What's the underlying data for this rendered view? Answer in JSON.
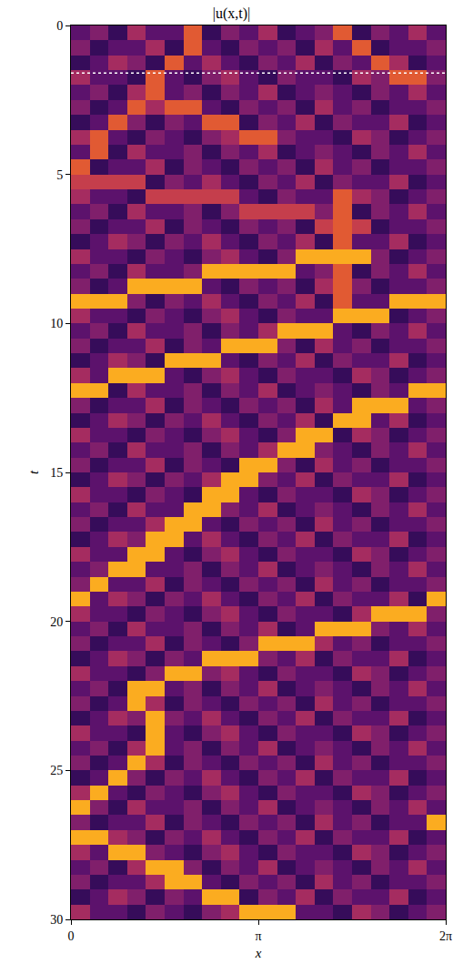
{
  "chart_data": {
    "type": "heatmap",
    "title": "|u(x,t)|",
    "x_label": "x",
    "y_label": "t",
    "xlim": [
      0,
      6.28318
    ],
    "ylim": [
      30,
      0
    ],
    "xticks": [
      0,
      {
        "value": 3.14159,
        "label": "π"
      },
      {
        "value": 6.28318,
        "label": "2π"
      }
    ],
    "yticks": [
      0,
      5,
      10,
      15,
      20,
      25,
      30
    ],
    "zlim": [
      0,
      10
    ],
    "hline": {
      "y": 1.6,
      "color": "#ffffff",
      "line_style": "dot"
    },
    "x": [
      0.157,
      0.471,
      0.785,
      1.1,
      1.414,
      1.728,
      2.042,
      2.356,
      2.67,
      2.985,
      3.299,
      3.613,
      3.927,
      4.241,
      4.555,
      4.869,
      5.184,
      5.498,
      5.812,
      6.126
    ],
    "y": [
      0.25,
      0.75,
      1.25,
      1.75,
      2.25,
      2.75,
      3.25,
      3.75,
      4.25,
      4.75,
      5.25,
      5.75,
      6.25,
      6.75,
      7.25,
      7.75,
      8.25,
      8.75,
      9.25,
      9.75,
      10.25,
      10.75,
      11.25,
      11.75,
      12.25,
      12.75,
      13.25,
      13.75,
      14.25,
      14.75,
      15.25,
      15.75,
      16.25,
      16.75,
      17.25,
      17.75,
      18.25,
      18.75,
      19.25,
      19.75,
      20.25,
      20.75,
      21.25,
      21.75,
      22.25,
      22.75,
      23.25,
      23.75,
      24.25,
      24.75,
      25.25,
      25.75,
      26.25,
      26.75,
      27.25,
      27.75,
      28.25,
      28.75,
      29.25,
      29.75
    ],
    "z": [
      [
        3,
        4,
        2,
        5,
        3,
        3,
        7,
        2,
        4,
        3,
        5,
        2,
        3,
        4,
        7,
        2,
        4,
        3,
        5,
        3
      ],
      [
        4,
        2,
        3,
        3,
        5,
        2,
        7,
        3,
        2,
        4,
        3,
        4,
        2,
        5,
        3,
        7,
        2,
        3,
        3,
        4
      ],
      [
        2,
        3,
        5,
        4,
        2,
        7,
        3,
        5,
        3,
        2,
        4,
        3,
        5,
        2,
        4,
        3,
        7,
        5,
        2,
        3
      ],
      [
        5,
        3,
        3,
        2,
        7,
        3,
        2,
        4,
        5,
        3,
        2,
        4,
        3,
        3,
        2,
        5,
        4,
        7,
        7,
        4
      ],
      [
        3,
        4,
        2,
        5,
        7,
        3,
        4,
        2,
        4,
        3,
        5,
        2,
        3,
        4,
        3,
        2,
        4,
        3,
        5,
        3
      ],
      [
        4,
        2,
        3,
        7,
        5,
        7,
        7,
        3,
        2,
        4,
        3,
        4,
        2,
        5,
        3,
        4,
        2,
        3,
        3,
        4
      ],
      [
        2,
        3,
        7,
        4,
        2,
        4,
        3,
        7,
        7,
        2,
        4,
        3,
        5,
        2,
        4,
        3,
        3,
        5,
        2,
        3
      ],
      [
        5,
        7,
        3,
        2,
        4,
        3,
        2,
        4,
        5,
        7,
        7,
        4,
        3,
        3,
        2,
        5,
        4,
        2,
        3,
        4
      ],
      [
        3,
        7,
        2,
        5,
        3,
        3,
        4,
        2,
        4,
        3,
        5,
        2,
        3,
        4,
        3,
        2,
        4,
        3,
        5,
        3
      ],
      [
        7,
        2,
        3,
        3,
        5,
        2,
        4,
        3,
        2,
        4,
        3,
        4,
        2,
        5,
        3,
        4,
        2,
        3,
        3,
        4
      ],
      [
        6,
        6,
        6,
        6,
        2,
        4,
        3,
        5,
        3,
        2,
        4,
        3,
        5,
        2,
        4,
        3,
        3,
        5,
        2,
        3
      ],
      [
        5,
        3,
        3,
        2,
        6,
        6,
        6,
        6,
        6,
        3,
        2,
        4,
        3,
        3,
        7,
        5,
        4,
        2,
        3,
        4
      ],
      [
        3,
        4,
        2,
        5,
        3,
        3,
        4,
        2,
        4,
        6,
        6,
        6,
        6,
        4,
        7,
        2,
        4,
        3,
        5,
        3
      ],
      [
        4,
        2,
        3,
        3,
        5,
        2,
        4,
        3,
        2,
        4,
        3,
        4,
        2,
        6,
        7,
        6,
        2,
        3,
        3,
        4
      ],
      [
        2,
        3,
        5,
        4,
        2,
        4,
        3,
        5,
        3,
        2,
        4,
        3,
        5,
        2,
        7,
        3,
        3,
        5,
        2,
        3
      ],
      [
        5,
        3,
        3,
        2,
        4,
        3,
        2,
        4,
        5,
        3,
        2,
        4,
        9,
        9,
        9,
        9,
        4,
        2,
        3,
        4
      ],
      [
        3,
        4,
        2,
        5,
        3,
        3,
        4,
        9,
        9,
        9,
        9,
        9,
        3,
        4,
        7,
        2,
        4,
        3,
        5,
        3
      ],
      [
        4,
        2,
        3,
        9,
        9,
        9,
        9,
        3,
        2,
        4,
        3,
        4,
        2,
        5,
        7,
        4,
        2,
        3,
        3,
        4
      ],
      [
        9,
        9,
        9,
        4,
        2,
        4,
        3,
        5,
        3,
        2,
        4,
        3,
        5,
        2,
        7,
        3,
        3,
        9,
        9,
        9
      ],
      [
        5,
        3,
        3,
        2,
        4,
        3,
        2,
        4,
        5,
        3,
        2,
        4,
        3,
        3,
        9,
        9,
        9,
        2,
        3,
        4
      ],
      [
        3,
        4,
        2,
        5,
        3,
        3,
        4,
        2,
        4,
        3,
        5,
        9,
        9,
        9,
        3,
        2,
        4,
        3,
        5,
        3
      ],
      [
        4,
        2,
        3,
        3,
        5,
        2,
        4,
        3,
        9,
        9,
        9,
        4,
        2,
        5,
        3,
        4,
        2,
        3,
        3,
        4
      ],
      [
        2,
        3,
        5,
        4,
        2,
        9,
        9,
        9,
        3,
        2,
        4,
        3,
        5,
        2,
        4,
        3,
        3,
        5,
        2,
        3
      ],
      [
        5,
        3,
        9,
        9,
        9,
        3,
        2,
        4,
        5,
        3,
        2,
        4,
        3,
        3,
        2,
        5,
        4,
        2,
        3,
        4
      ],
      [
        9,
        9,
        2,
        5,
        3,
        3,
        4,
        2,
        4,
        3,
        5,
        2,
        3,
        4,
        3,
        2,
        4,
        3,
        9,
        9
      ],
      [
        4,
        2,
        3,
        3,
        5,
        2,
        4,
        3,
        2,
        4,
        3,
        4,
        2,
        5,
        3,
        9,
        9,
        9,
        3,
        4
      ],
      [
        2,
        3,
        5,
        4,
        2,
        4,
        3,
        5,
        3,
        2,
        4,
        3,
        5,
        2,
        9,
        9,
        3,
        5,
        2,
        3
      ],
      [
        5,
        3,
        3,
        2,
        4,
        3,
        2,
        4,
        5,
        3,
        2,
        4,
        9,
        9,
        2,
        5,
        4,
        2,
        3,
        4
      ],
      [
        3,
        4,
        2,
        5,
        3,
        3,
        4,
        2,
        4,
        3,
        5,
        9,
        9,
        4,
        3,
        2,
        4,
        3,
        5,
        3
      ],
      [
        4,
        2,
        3,
        3,
        5,
        2,
        4,
        3,
        2,
        9,
        9,
        4,
        2,
        5,
        3,
        4,
        2,
        3,
        3,
        4
      ],
      [
        2,
        3,
        5,
        4,
        2,
        4,
        3,
        5,
        9,
        9,
        4,
        3,
        5,
        2,
        4,
        3,
        3,
        5,
        2,
        3
      ],
      [
        5,
        3,
        3,
        2,
        4,
        3,
        2,
        9,
        9,
        3,
        2,
        4,
        3,
        3,
        2,
        5,
        4,
        2,
        3,
        4
      ],
      [
        3,
        4,
        2,
        5,
        3,
        3,
        9,
        9,
        4,
        3,
        5,
        2,
        3,
        4,
        3,
        2,
        4,
        3,
        5,
        3
      ],
      [
        4,
        2,
        3,
        3,
        5,
        9,
        9,
        3,
        2,
        4,
        3,
        4,
        2,
        5,
        3,
        4,
        2,
        3,
        3,
        4
      ],
      [
        2,
        3,
        5,
        4,
        9,
        9,
        3,
        5,
        3,
        2,
        4,
        3,
        5,
        2,
        4,
        3,
        3,
        5,
        2,
        3
      ],
      [
        5,
        3,
        3,
        9,
        9,
        3,
        2,
        4,
        5,
        3,
        2,
        4,
        3,
        3,
        2,
        5,
        4,
        2,
        3,
        4
      ],
      [
        3,
        4,
        9,
        9,
        3,
        3,
        4,
        2,
        4,
        3,
        5,
        2,
        3,
        4,
        3,
        2,
        4,
        3,
        5,
        3
      ],
      [
        4,
        9,
        3,
        3,
        5,
        2,
        4,
        3,
        2,
        4,
        3,
        4,
        2,
        5,
        3,
        4,
        2,
        3,
        3,
        4
      ],
      [
        9,
        3,
        5,
        4,
        2,
        4,
        3,
        5,
        3,
        2,
        4,
        3,
        5,
        2,
        4,
        3,
        3,
        5,
        2,
        9
      ],
      [
        5,
        3,
        3,
        2,
        4,
        3,
        2,
        4,
        5,
        3,
        2,
        4,
        3,
        3,
        2,
        5,
        9,
        9,
        9,
        4
      ],
      [
        3,
        4,
        2,
        5,
        3,
        3,
        4,
        2,
        4,
        3,
        5,
        2,
        3,
        9,
        9,
        9,
        4,
        3,
        5,
        3
      ],
      [
        4,
        2,
        3,
        3,
        5,
        2,
        4,
        3,
        2,
        4,
        9,
        9,
        9,
        5,
        3,
        4,
        2,
        3,
        3,
        4
      ],
      [
        2,
        3,
        5,
        4,
        2,
        4,
        3,
        9,
        9,
        9,
        4,
        3,
        5,
        2,
        4,
        3,
        3,
        5,
        2,
        3
      ],
      [
        5,
        3,
        3,
        2,
        4,
        9,
        9,
        4,
        5,
        3,
        2,
        4,
        3,
        3,
        2,
        5,
        4,
        2,
        3,
        4
      ],
      [
        3,
        4,
        2,
        9,
        9,
        3,
        4,
        2,
        4,
        3,
        5,
        2,
        3,
        4,
        3,
        2,
        4,
        3,
        5,
        3
      ],
      [
        4,
        2,
        3,
        9,
        5,
        2,
        4,
        3,
        2,
        4,
        3,
        4,
        2,
        5,
        3,
        4,
        2,
        3,
        3,
        4
      ],
      [
        2,
        3,
        5,
        4,
        9,
        4,
        3,
        5,
        3,
        2,
        4,
        3,
        5,
        2,
        4,
        3,
        3,
        5,
        2,
        3
      ],
      [
        5,
        3,
        3,
        2,
        9,
        3,
        2,
        4,
        5,
        3,
        2,
        4,
        3,
        3,
        2,
        5,
        4,
        2,
        3,
        4
      ],
      [
        3,
        4,
        2,
        5,
        9,
        3,
        4,
        2,
        4,
        3,
        5,
        2,
        3,
        4,
        3,
        2,
        4,
        3,
        5,
        3
      ],
      [
        4,
        2,
        3,
        9,
        5,
        2,
        4,
        3,
        2,
        4,
        3,
        4,
        2,
        5,
        3,
        4,
        2,
        3,
        3,
        4
      ],
      [
        2,
        3,
        9,
        4,
        2,
        4,
        3,
        5,
        3,
        2,
        4,
        3,
        5,
        2,
        4,
        3,
        3,
        5,
        2,
        3
      ],
      [
        5,
        9,
        3,
        2,
        4,
        3,
        2,
        4,
        5,
        3,
        2,
        4,
        3,
        3,
        2,
        5,
        4,
        2,
        3,
        4
      ],
      [
        9,
        4,
        2,
        5,
        3,
        3,
        4,
        2,
        4,
        3,
        5,
        2,
        3,
        4,
        3,
        2,
        4,
        3,
        5,
        3
      ],
      [
        4,
        2,
        3,
        3,
        5,
        2,
        4,
        3,
        2,
        4,
        3,
        4,
        2,
        5,
        3,
        4,
        2,
        3,
        3,
        9
      ],
      [
        9,
        9,
        5,
        4,
        2,
        4,
        3,
        5,
        3,
        2,
        4,
        3,
        5,
        2,
        4,
        3,
        3,
        5,
        2,
        3
      ],
      [
        5,
        3,
        9,
        9,
        4,
        3,
        2,
        4,
        5,
        3,
        2,
        4,
        3,
        3,
        2,
        5,
        4,
        2,
        3,
        4
      ],
      [
        3,
        4,
        2,
        5,
        9,
        9,
        4,
        2,
        4,
        3,
        5,
        2,
        3,
        4,
        3,
        2,
        4,
        3,
        5,
        3
      ],
      [
        4,
        2,
        3,
        3,
        5,
        9,
        9,
        3,
        2,
        4,
        3,
        4,
        2,
        5,
        3,
        4,
        2,
        3,
        3,
        4
      ],
      [
        2,
        3,
        5,
        4,
        2,
        4,
        3,
        9,
        9,
        2,
        4,
        3,
        5,
        2,
        4,
        3,
        3,
        5,
        2,
        3
      ],
      [
        5,
        3,
        3,
        2,
        4,
        3,
        2,
        4,
        5,
        9,
        9,
        9,
        3,
        3,
        2,
        5,
        4,
        2,
        3,
        4
      ]
    ]
  }
}
